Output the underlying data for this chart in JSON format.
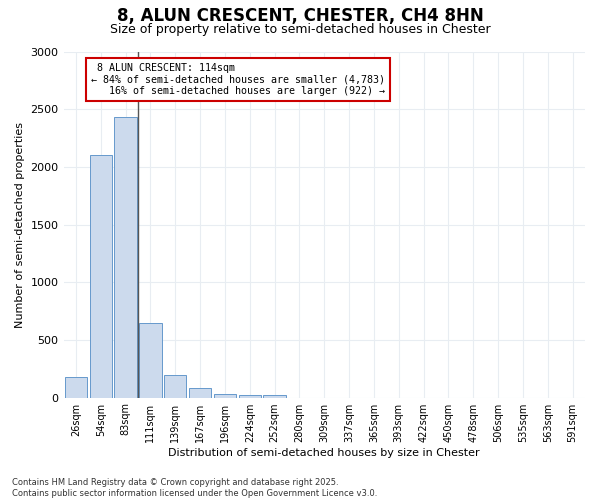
{
  "title": "8, ALUN CRESCENT, CHESTER, CH4 8HN",
  "subtitle": "Size of property relative to semi-detached houses in Chester",
  "xlabel": "Distribution of semi-detached houses by size in Chester",
  "ylabel": "Number of semi-detached properties",
  "bar_color": "#ccdaed",
  "bar_edge_color": "#6699cc",
  "categories": [
    "26sqm",
    "54sqm",
    "83sqm",
    "111sqm",
    "139sqm",
    "167sqm",
    "196sqm",
    "224sqm",
    "252sqm",
    "280sqm",
    "309sqm",
    "337sqm",
    "365sqm",
    "393sqm",
    "422sqm",
    "450sqm",
    "478sqm",
    "506sqm",
    "535sqm",
    "563sqm",
    "591sqm"
  ],
  "values": [
    175,
    2100,
    2430,
    645,
    195,
    80,
    35,
    25,
    20,
    0,
    0,
    0,
    0,
    0,
    0,
    0,
    0,
    0,
    0,
    0,
    0
  ],
  "ylim": [
    0,
    3000
  ],
  "yticks": [
    0,
    500,
    1000,
    1500,
    2000,
    2500,
    3000
  ],
  "property_line_bin": 3,
  "property_label": "8 ALUN CRESCENT: 114sqm",
  "smaller_pct": "84%",
  "smaller_count": "4,783",
  "larger_pct": "16%",
  "larger_count": "922",
  "annotation_box_color": "#cc0000",
  "footer_line1": "Contains HM Land Registry data © Crown copyright and database right 2025.",
  "footer_line2": "Contains public sector information licensed under the Open Government Licence v3.0.",
  "background_color": "#ffffff",
  "grid_color": "#e8edf2"
}
